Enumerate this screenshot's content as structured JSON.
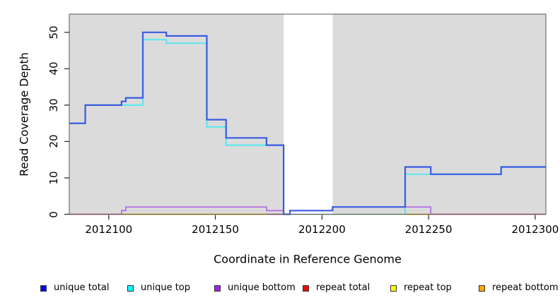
{
  "chart_data": {
    "type": "line",
    "subtype": "step",
    "title": "",
    "xlabel": "Coordinate in Reference Genome",
    "ylabel": "Read Coverage Depth",
    "xlim": [
      2012081.5,
      2012305
    ],
    "ylim": [
      0,
      55
    ],
    "x_ticks": [
      "2012100",
      "2012150",
      "2012200",
      "2012250",
      "2012300"
    ],
    "x_tick_values": [
      2012100,
      2012150,
      2012200,
      2012250,
      2012300
    ],
    "y_ticks": [
      "0",
      "10",
      "20",
      "30",
      "40",
      "50"
    ],
    "y_tick_values": [
      0,
      10,
      20,
      30,
      40,
      50
    ],
    "grid": false,
    "legend_position": "bottom",
    "plot_bg": "#dbdbdb",
    "page_bg": "#ffffff",
    "box_color": "#5a5a5a",
    "tick_color": "#222222",
    "highlight_band": {
      "x1": 2012182,
      "x2": 2012205,
      "color": "#ffffff"
    },
    "series": [
      {
        "name": "unique total",
        "legend_color": "#0000ff",
        "line_color": "#3b5be1",
        "line_width": 2.2,
        "draw": true,
        "segments": [
          {
            "steps": [
              [
                2012081.5,
                25
              ],
              [
                2012089,
                30
              ],
              [
                2012106,
                31
              ],
              [
                2012108,
                32
              ],
              [
                2012116,
                50
              ],
              [
                2012127,
                49
              ],
              [
                2012146,
                26
              ],
              [
                2012155,
                21
              ],
              [
                2012174,
                19
              ],
              [
                2012182,
                0
              ],
              [
                2012185,
                1
              ],
              [
                2012205,
                2
              ],
              [
                2012239,
                13
              ],
              [
                2012251,
                11
              ],
              [
                2012284,
                13
              ]
            ],
            "x_end": 2012305
          }
        ]
      },
      {
        "name": "unique top",
        "legend_color": "#00ffff",
        "line_color": "#63e6ef",
        "line_width": 2.2,
        "draw": true,
        "segments": [
          {
            "steps": [
              [
                2012081.5,
                25
              ],
              [
                2012089,
                30
              ],
              [
                2012116,
                48
              ],
              [
                2012127,
                47
              ],
              [
                2012146,
                24
              ],
              [
                2012155,
                19
              ],
              [
                2012182,
                0
              ]
            ],
            "x_end": 2012182
          },
          {
            "steps": [
              [
                2012239,
                0
              ],
              [
                2012239,
                11
              ],
              [
                2012284,
                13
              ]
            ],
            "x_end": 2012305
          }
        ]
      },
      {
        "name": "unique bottom",
        "legend_color": "#a020f0",
        "line_color": "#b168e6",
        "line_width": 1.7,
        "draw": true,
        "segments": [
          {
            "steps": [
              [
                2012106,
                0
              ],
              [
                2012106,
                1
              ],
              [
                2012108,
                2
              ],
              [
                2012174,
                1
              ],
              [
                2012182,
                0
              ],
              [
                2012185,
                1
              ],
              [
                2012205,
                2
              ],
              [
                2012251,
                0
              ]
            ],
            "x_end": 2012251
          }
        ]
      },
      {
        "name": "repeat total",
        "legend_color": "#ff0000",
        "line_color": "#d0608a",
        "line_width": 1.8,
        "draw": false,
        "segments": [
          {
            "steps": [
              [
                2012081.5,
                0
              ]
            ],
            "x_end": 2012305
          }
        ]
      },
      {
        "name": "repeat top",
        "legend_color": "#ffff00",
        "line_color": "#ffff00",
        "line_width": 1.8,
        "draw": false,
        "segments": [
          {
            "steps": [
              [
                2012081.5,
                0
              ]
            ],
            "x_end": 2012305
          }
        ]
      },
      {
        "name": "repeat bottom",
        "legend_color": "#ffa500",
        "line_color": "#ffa500",
        "line_width": 1.8,
        "draw": false,
        "segments": [
          {
            "steps": [
              [
                2012081.5,
                0
              ]
            ],
            "x_end": 2012305
          }
        ]
      }
    ],
    "baseline_segments": [
      {
        "x1": 2012081.5,
        "x2": 2012106,
        "color": "#d0608a"
      },
      {
        "x1": 2012106,
        "x2": 2012174,
        "color": "#ffa500"
      },
      {
        "x1": 2012174,
        "x2": 2012185,
        "color": "#d0608a"
      },
      {
        "x1": 2012185,
        "x2": 2012239,
        "color": "#95d7a0"
      },
      {
        "x1": 2012239,
        "x2": 2012251,
        "color": "#ffa500"
      },
      {
        "x1": 2012251,
        "x2": 2012305,
        "color": "#d0608a"
      }
    ],
    "legend": [
      {
        "label": "unique total",
        "color": "#0000ff"
      },
      {
        "label": "unique top",
        "color": "#00ffff"
      },
      {
        "label": "unique bottom",
        "color": "#a020f0"
      },
      {
        "label": "repeat total",
        "color": "#ff0000"
      },
      {
        "label": "repeat top",
        "color": "#ffff00"
      },
      {
        "label": "repeat bottom",
        "color": "#ffa500"
      }
    ]
  }
}
